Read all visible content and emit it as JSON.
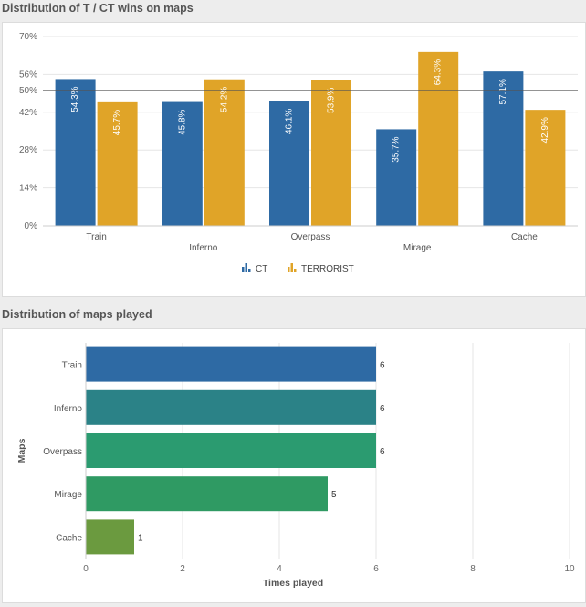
{
  "charts": [
    {
      "section_title": "Distribution of T / CT wins on maps",
      "chart_data": {
        "type": "bar",
        "categories": [
          "Train",
          "Inferno",
          "Overpass",
          "Mirage",
          "Cache"
        ],
        "series": [
          {
            "name": "CT",
            "values": [
              54.3,
              45.8,
              46.1,
              35.7,
              57.1
            ],
            "labels": [
              "54.3%",
              "45.8%",
              "46.1%",
              "35.7%",
              "57.1%"
            ],
            "color": "#2e6aa4"
          },
          {
            "name": "TERRORIST",
            "values": [
              45.7,
              54.2,
              53.9,
              64.3,
              42.9
            ],
            "labels": [
              "45.7%",
              "54.2%",
              "53.9%",
              "64.3%",
              "42.9%"
            ],
            "color": "#e0a428"
          }
        ],
        "yticks": [
          0,
          14,
          28,
          42,
          50,
          56,
          70
        ],
        "ytick_labels": [
          "0%",
          "14%",
          "28%",
          "42%",
          "50%",
          "56%",
          "70%"
        ],
        "ylim": [
          0,
          70
        ],
        "reference_line": 50,
        "legend_position": "bottom-center",
        "grid": true
      }
    },
    {
      "section_title": "Distribution of maps played",
      "chart_data": {
        "type": "bar",
        "orientation": "horizontal",
        "categories": [
          "Train",
          "Inferno",
          "Overpass",
          "Mirage",
          "Cache"
        ],
        "values": [
          6,
          6,
          6,
          5,
          1
        ],
        "colors": [
          "#2e6aa4",
          "#2b8287",
          "#2b9b70",
          "#2f9a63",
          "#6b9a3f"
        ],
        "xlabel": "Times played",
        "ylabel": "Maps",
        "xticks": [
          0,
          2,
          4,
          6,
          8,
          10
        ],
        "xlim": [
          0,
          10
        ],
        "grid": true
      }
    }
  ]
}
